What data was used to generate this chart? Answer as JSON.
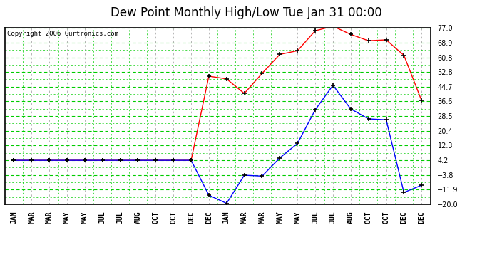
{
  "title": "Dew Point Monthly High/Low Tue Jan 31 00:00",
  "copyright": "Copyright 2006 Curtronics.com",
  "x_labels": [
    "JAN",
    "MAR",
    "MAR",
    "MAY",
    "MAY",
    "JUL",
    "JUL",
    "AUG",
    "OCT",
    "OCT",
    "DEC",
    "DEC",
    "JAN",
    "MAR",
    "MAR",
    "MAY",
    "MAY",
    "JUL",
    "JUL",
    "AUG",
    "OCT",
    "OCT",
    "DEC",
    "DEC"
  ],
  "y_ticks": [
    77.0,
    68.9,
    60.8,
    52.8,
    44.7,
    36.6,
    28.5,
    20.4,
    12.3,
    4.2,
    -3.8,
    -11.9,
    -20.0
  ],
  "y_min": -20.0,
  "y_max": 77.0,
  "red_values": [
    4.2,
    4.2,
    4.2,
    4.2,
    4.2,
    4.2,
    4.2,
    4.2,
    4.2,
    4.2,
    4.2,
    50.5,
    49.0,
    41.0,
    52.0,
    62.5,
    64.5,
    75.5,
    78.0,
    73.5,
    70.0,
    70.5,
    62.0,
    37.0
  ],
  "blue_values": [
    4.2,
    4.2,
    4.2,
    4.2,
    4.2,
    4.2,
    4.2,
    4.2,
    4.2,
    4.2,
    4.2,
    -15.0,
    -19.5,
    -4.0,
    -4.5,
    5.5,
    13.5,
    32.0,
    45.5,
    32.5,
    27.0,
    26.5,
    -13.5,
    -9.5
  ],
  "bg_color": "#ffffff",
  "plot_bg_color": "#ffffff",
  "grid_major_color": "#00cc00",
  "grid_minor_color": "#aaaaaa",
  "red_color": "#ff0000",
  "blue_color": "#0000ff",
  "border_color": "#000000",
  "title_fontsize": 12,
  "label_fontsize": 7,
  "copyright_fontsize": 6.5
}
